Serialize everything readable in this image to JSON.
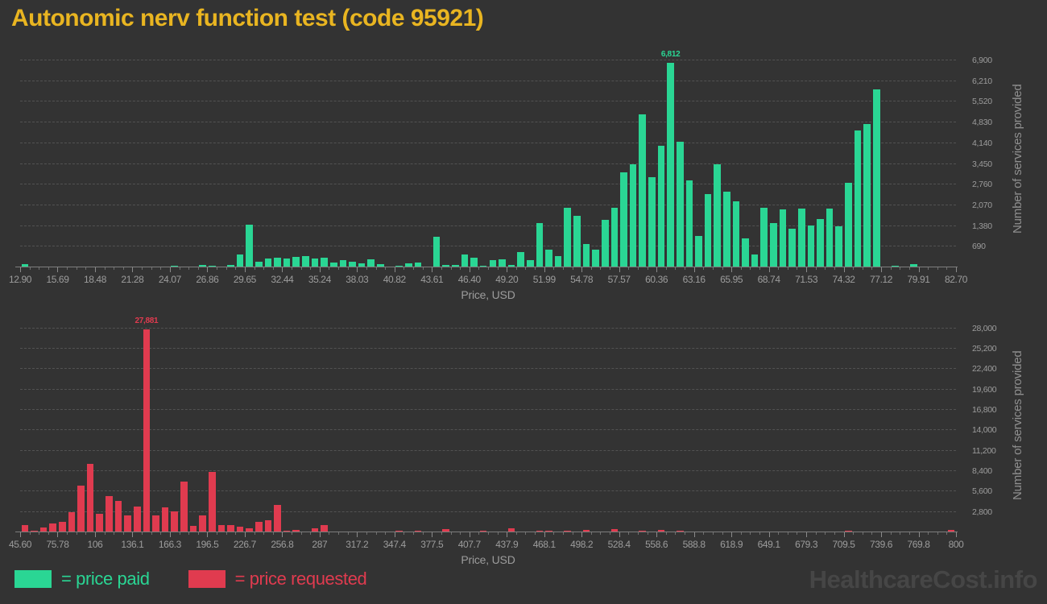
{
  "title": "Autonomic nerv function test (code 95921)",
  "watermark": "HealthcareCost.info",
  "legend": {
    "paid_label": "= price paid",
    "requested_label": "= price requested"
  },
  "colors": {
    "background": "#333333",
    "title": "#E9B521",
    "paid": "#2AD694",
    "requested": "#E03B4F",
    "tick_text": "#9c9c9c",
    "grid": "#525252",
    "watermark": "#464646"
  },
  "chart_data": [
    {
      "type": "bar",
      "name": "price paid histogram",
      "series_color": "#2AD694",
      "xlabel": "Price, USD",
      "ylabel": "Number of services provided",
      "grid": "dashed horizontal",
      "legend_position": "bottom-left",
      "x_bin_start": 12.9,
      "x_bin_step": 0.6975,
      "x_tick_labels": [
        "12.90",
        "15.69",
        "18.48",
        "21.28",
        "24.07",
        "26.86",
        "29.65",
        "32.44",
        "35.24",
        "38.03",
        "40.82",
        "43.61",
        "46.40",
        "49.20",
        "51.99",
        "54.78",
        "57.57",
        "60.36",
        "63.16",
        "65.95",
        "68.74",
        "71.53",
        "74.32",
        "77.12",
        "79.91",
        "82.70"
      ],
      "y_tick_values": [
        690,
        1380,
        2070,
        2760,
        3450,
        4140,
        4830,
        5520,
        6210,
        6900
      ],
      "y_tick_labels": [
        "690",
        "1,380",
        "2,070",
        "2,760",
        "3,450",
        "4,140",
        "4,830",
        "5,520",
        "6,210",
        "6,900"
      ],
      "ylim": [
        0,
        7250
      ],
      "values": [
        100,
        0,
        0,
        0,
        0,
        0,
        0,
        0,
        0,
        0,
        0,
        0,
        0,
        0,
        0,
        0,
        60,
        0,
        30,
        70,
        60,
        30,
        90,
        440,
        1430,
        185,
        300,
        330,
        290,
        350,
        380,
        300,
        330,
        150,
        230,
        185,
        140,
        260,
        110,
        0,
        45,
        130,
        165,
        0,
        1010,
        75,
        90,
        440,
        320,
        45,
        230,
        275,
        90,
        505,
        230,
        1470,
        600,
        385,
        1980,
        1730,
        775,
        600,
        1590,
        1980,
        3170,
        3430,
        5100,
        3010,
        4060,
        6812,
        4190,
        2900,
        1060,
        2440,
        3430,
        2530,
        2210,
        965,
        440,
        2000,
        1470,
        1930,
        1290,
        1960,
        1400,
        1610,
        1960,
        1360,
        2810,
        4570,
        4790,
        5930,
        0,
        50,
        0,
        110,
        0,
        0,
        0,
        0
      ],
      "annotation": {
        "bin_index": 69,
        "label": "6,812"
      }
    },
    {
      "type": "bar",
      "name": "price requested histogram",
      "series_color": "#E03B4F",
      "xlabel": "Price, USD",
      "ylabel": "Number of services provided",
      "grid": "dashed horizontal",
      "x_bin_start": 45.6,
      "x_bin_step": 7.544,
      "x_tick_labels": [
        "45.60",
        "75.78",
        "106",
        "136.1",
        "166.3",
        "196.5",
        "226.7",
        "256.8",
        "287",
        "317.2",
        "347.4",
        "377.5",
        "407.7",
        "437.9",
        "468.1",
        "498.2",
        "528.4",
        "558.6",
        "588.8",
        "618.9",
        "649.1",
        "679.3",
        "709.5",
        "739.6",
        "769.8",
        "800"
      ],
      "y_tick_values": [
        2800,
        5600,
        8400,
        11200,
        14000,
        16800,
        19600,
        22400,
        25200,
        28000
      ],
      "y_tick_labels": [
        "2,800",
        "5,600",
        "8,400",
        "11,200",
        "14,000",
        "16,800",
        "19,600",
        "22,400",
        "25,200",
        "28,000"
      ],
      "ylim": [
        0,
        29400
      ],
      "values": [
        1000,
        200,
        700,
        1200,
        1400,
        2800,
        6460,
        9400,
        2550,
        5000,
        4330,
        2360,
        3500,
        27881,
        2320,
        3480,
        2900,
        6970,
        850,
        2280,
        8240,
        970,
        1040,
        770,
        540,
        1400,
        1630,
        3750,
        270,
        350,
        150,
        500,
        1000,
        100,
        0,
        150,
        0,
        0,
        0,
        0,
        270,
        0,
        170,
        0,
        0,
        470,
        0,
        0,
        0,
        230,
        0,
        0,
        500,
        0,
        0,
        230,
        200,
        0,
        200,
        0,
        330,
        0,
        0,
        430,
        0,
        0,
        230,
        0,
        370,
        0,
        200,
        0,
        0,
        0,
        0,
        0,
        0,
        0,
        0,
        0,
        0,
        0,
        0,
        0,
        0,
        0,
        0,
        0,
        200,
        0,
        0,
        0,
        0,
        0,
        0,
        0,
        0,
        0,
        0,
        300
      ],
      "annotation": {
        "bin_index": 13,
        "label": "27,881"
      }
    }
  ]
}
